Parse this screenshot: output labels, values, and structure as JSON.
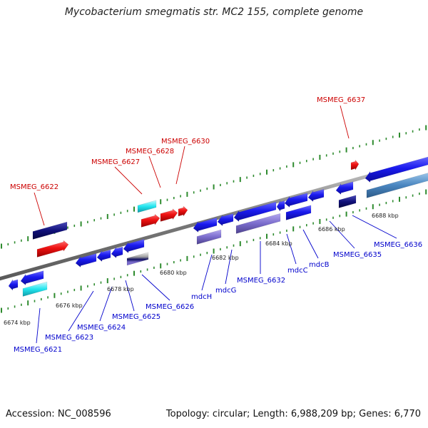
{
  "title": "Mycobacterium smegmatis str. MC2 155, complete genome",
  "footer": {
    "accession": "Accession: NC_008596",
    "summary": "Topology: circular; Length: 6,988,209 bp; Genes: 6,770"
  },
  "colors": {
    "backbone": "#888888",
    "tick": "#2e8b2e",
    "forward_label": "#cc0000",
    "reverse_label": "#0000cc",
    "gene_blue": "#1a1aee",
    "gene_red": "#ee1111",
    "cyan": "#22e5ee",
    "navy": "#10107a",
    "purple": "#7a6ccc",
    "steel": "#4a86c0"
  },
  "position_labels": [
    "6674 kbp",
    "6676 kbp",
    "6678 kbp",
    "6680 kbp",
    "6682 kbp",
    "6684 kbp",
    "6686 kbp",
    "6688 kbp"
  ],
  "forward_gene_labels": [
    "MSMEG_6622",
    "MSMEG_6627",
    "MSMEG_6628",
    "MSMEG_6630",
    "MSMEG_6637"
  ],
  "reverse_gene_labels": [
    "MSMEG_6621",
    "MSMEG_6623",
    "MSMEG_6624",
    "MSMEG_6625",
    "MSMEG_6626",
    "mdcH",
    "mdcG",
    "MSMEG_6632",
    "mdcC",
    "mdcB",
    "MSMEG_6635",
    "MSMEG_6636"
  ]
}
